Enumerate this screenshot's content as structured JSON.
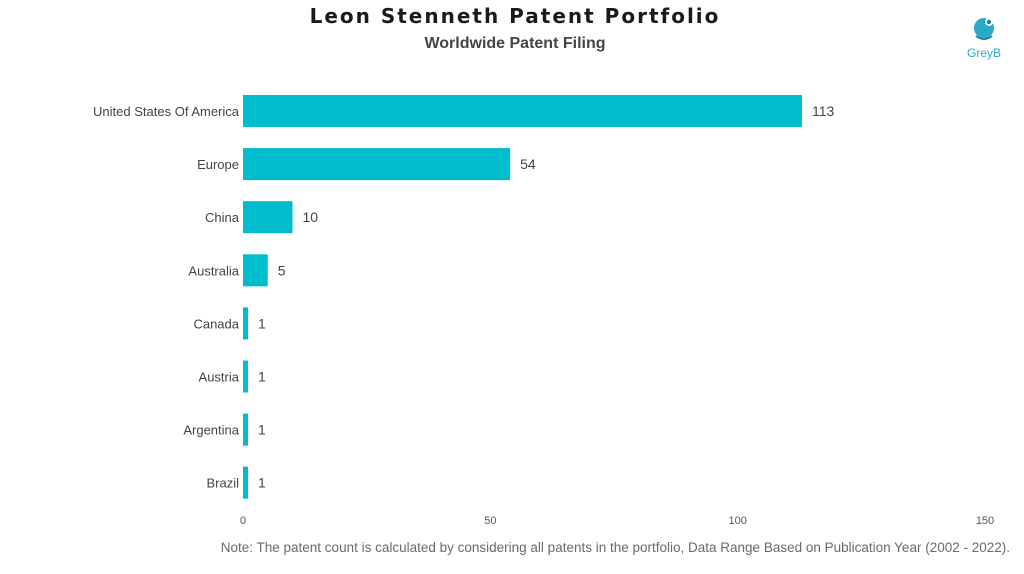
{
  "title": "Leon Stenneth Patent Portfolio",
  "subtitle": "Worldwide Patent Filing",
  "logo": {
    "text": "GreyB",
    "icon": "greyb-logo-icon",
    "color": "#2aa9c9"
  },
  "note": "Note: The patent count is calculated by considering all patents in the portfolio, Data Range Based on Publication Year (2002 - 2022).",
  "chart_data": {
    "type": "bar",
    "orientation": "horizontal",
    "categories": [
      "United States Of America",
      "Europe",
      "China",
      "Australia",
      "Canada",
      "Austria",
      "Argentina",
      "Brazil"
    ],
    "values": [
      113,
      54,
      10,
      5,
      1,
      1,
      1,
      1
    ],
    "xlim": [
      0,
      150
    ],
    "xticks": [
      0,
      50,
      100,
      150
    ],
    "bar_color": "#00bccc",
    "grid": false,
    "legend": "none"
  }
}
